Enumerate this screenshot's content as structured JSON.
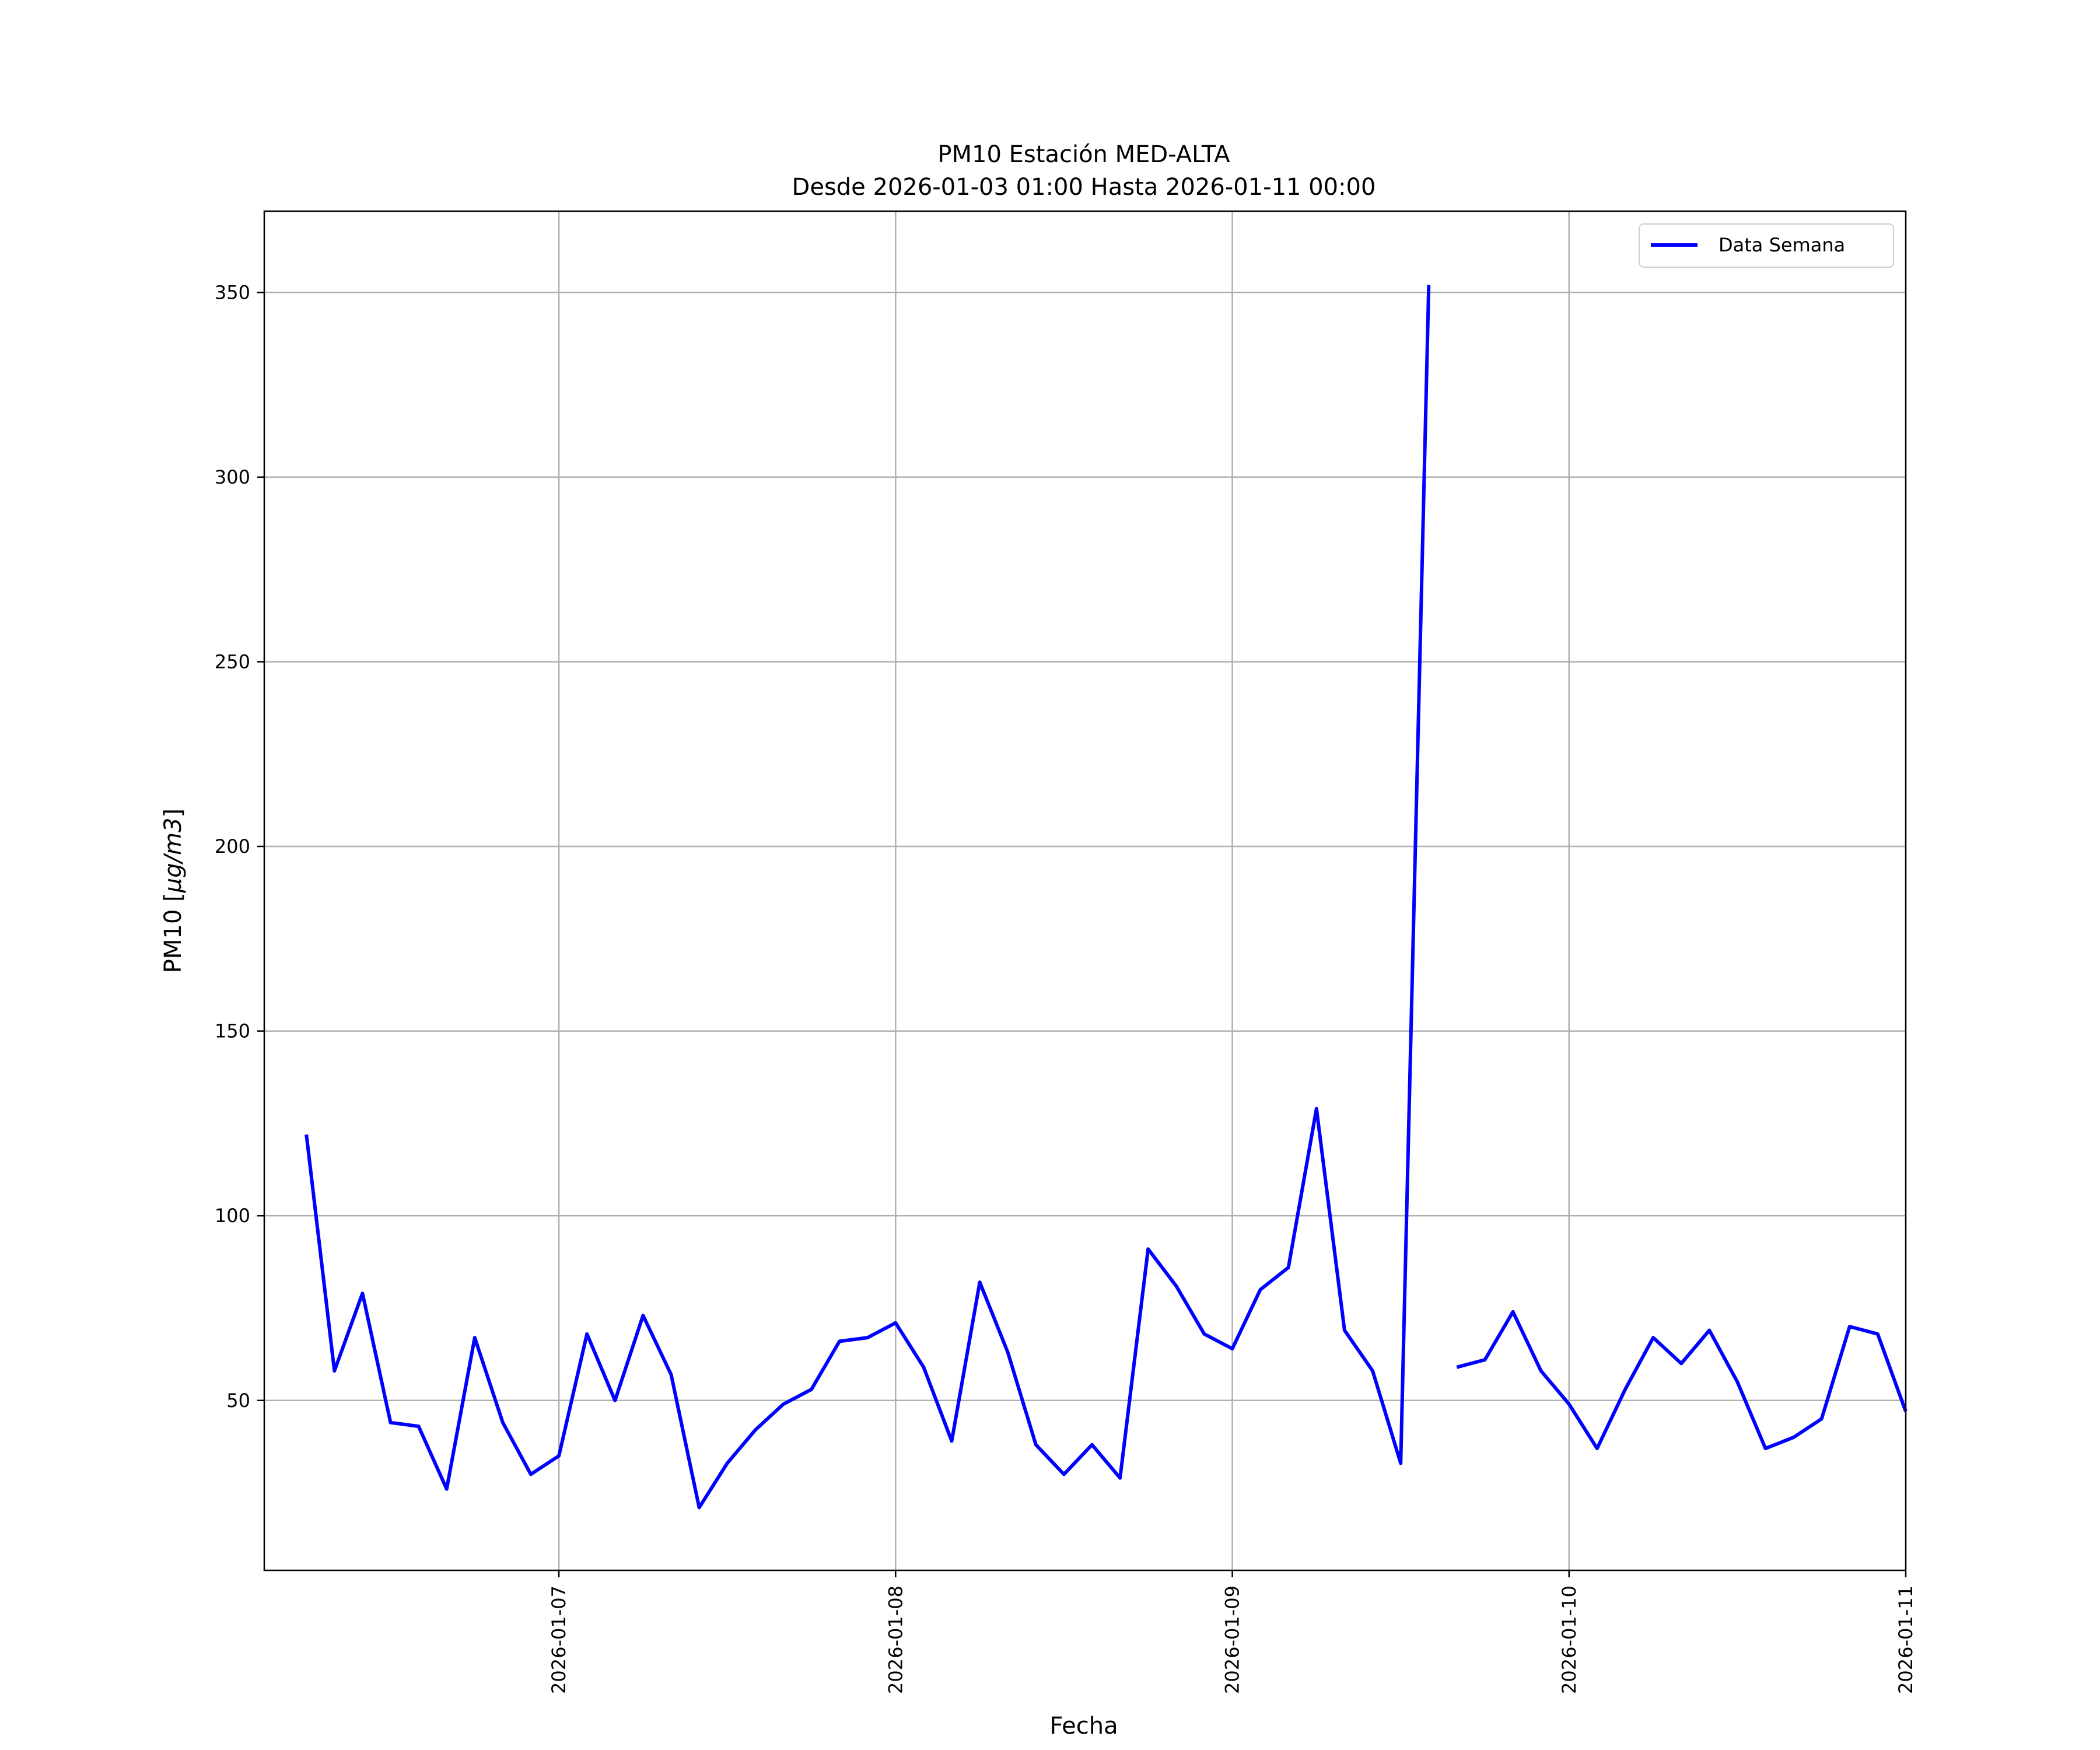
{
  "chart_data": {
    "type": "line",
    "title": "PM10 Estación MED-ALTA",
    "subtitle": "Desde 2026-01-03 01:00 Hasta 2026-01-11 00:00",
    "xlabel": "Fecha",
    "ylabel_prefix": "PM10 [",
    "ylabel_unit": "μg/m3",
    "ylabel_suffix": "]",
    "grid": true,
    "legend_position": "top-right",
    "colors": {
      "line": "#0000ff",
      "grid": "#b0b0b0",
      "axes": "#000000"
    },
    "x_axis": {
      "range": [
        "2026-01-06T03:00",
        "2026-01-11T00:00"
      ],
      "tick_labels": [
        "2026-01-07",
        "2026-01-08",
        "2026-01-09",
        "2026-01-10",
        "2026-01-11"
      ]
    },
    "y_axis": {
      "range": [
        4,
        372
      ],
      "tick_values": [
        50,
        100,
        150,
        200,
        250,
        300,
        350
      ],
      "tick_labels": [
        "50",
        "100",
        "150",
        "200",
        "250",
        "300",
        "350"
      ]
    },
    "series": [
      {
        "name": "Data Semana",
        "color": "#0000ff",
        "x": [
          "2026-01-06T06:00",
          "2026-01-06T08:00",
          "2026-01-06T10:00",
          "2026-01-06T12:00",
          "2026-01-06T14:00",
          "2026-01-06T16:00",
          "2026-01-06T18:00",
          "2026-01-06T20:00",
          "2026-01-06T22:00",
          "2026-01-07T00:00",
          "2026-01-07T02:00",
          "2026-01-07T04:00",
          "2026-01-07T06:00",
          "2026-01-07T08:00",
          "2026-01-07T10:00",
          "2026-01-07T12:00",
          "2026-01-07T14:00",
          "2026-01-07T16:00",
          "2026-01-07T18:00",
          "2026-01-07T20:00",
          "2026-01-07T22:00",
          "2026-01-08T00:00",
          "2026-01-08T02:00",
          "2026-01-08T04:00",
          "2026-01-08T06:00",
          "2026-01-08T08:00",
          "2026-01-08T10:00",
          "2026-01-08T12:00",
          "2026-01-08T14:00",
          "2026-01-08T16:00",
          "2026-01-08T18:00",
          "2026-01-08T20:00",
          "2026-01-08T22:00",
          "2026-01-09T00:00",
          "2026-01-09T02:00",
          "2026-01-09T04:00",
          "2026-01-09T06:00",
          "2026-01-09T08:00",
          "2026-01-09T10:00",
          "2026-01-09T12:00",
          "2026-01-09T14:00",
          "2026-01-09T16:00",
          "2026-01-09T18:00",
          "2026-01-09T20:00",
          "2026-01-09T22:00",
          "2026-01-10T00:00",
          "2026-01-10T02:00",
          "2026-01-10T04:00",
          "2026-01-10T06:00",
          "2026-01-10T08:00",
          "2026-01-10T10:00",
          "2026-01-10T12:00",
          "2026-01-10T14:00",
          "2026-01-10T16:00",
          "2026-01-10T18:00",
          "2026-01-10T20:00",
          "2026-01-10T22:00",
          "2026-01-11T00:00"
        ],
        "values": [
          122,
          58,
          79,
          44,
          43,
          26,
          67,
          44,
          30,
          35,
          68,
          50,
          73,
          57,
          21,
          33,
          42,
          49,
          53,
          66,
          67,
          71,
          59,
          39,
          82,
          63,
          38,
          30,
          38,
          29,
          91,
          81,
          68,
          64,
          80,
          86,
          129,
          69,
          58,
          33,
          352,
          59,
          61,
          74,
          58,
          49,
          37,
          53,
          67,
          60,
          69,
          55,
          37,
          40,
          45,
          70,
          68,
          47
        ],
        "segment_breaks": [
          41
        ]
      }
    ]
  }
}
